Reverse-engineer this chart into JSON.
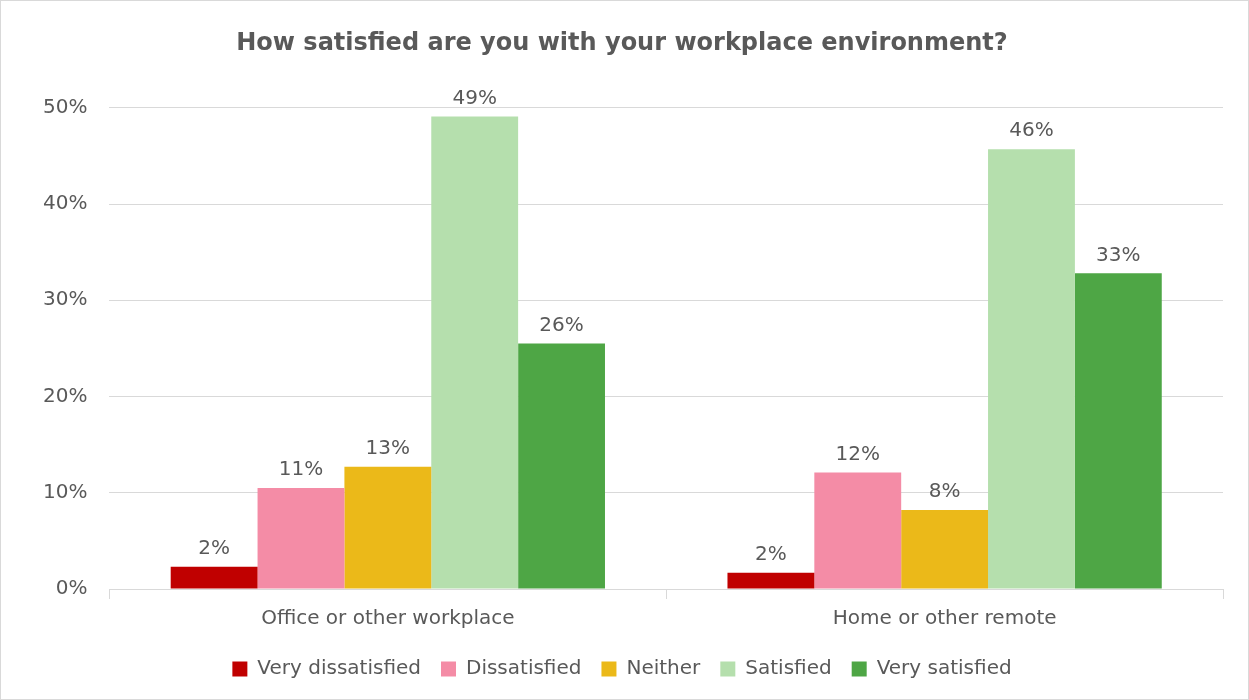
{
  "chart_data": {
    "type": "bar",
    "title": "How satisfied are you with your workplace environment?",
    "categories": [
      "Office or other workplace",
      "Home or other remote"
    ],
    "series": [
      {
        "name": "Very dissatisfied",
        "color": "#c00000",
        "values": [
          2.3,
          1.7
        ],
        "value_labels": [
          "2%",
          "2%"
        ]
      },
      {
        "name": "Dissatisfied",
        "color": "#f48ca6",
        "values": [
          10.5,
          12.1
        ],
        "value_labels": [
          "11%",
          "12%"
        ]
      },
      {
        "name": "Neither",
        "color": "#ebb919",
        "values": [
          12.7,
          8.2
        ],
        "value_labels": [
          "13%",
          "8%"
        ]
      },
      {
        "name": "Satisfied",
        "color": "#b5dfad",
        "values": [
          49.1,
          45.7
        ],
        "value_labels": [
          "49%",
          "46%"
        ]
      },
      {
        "name": "Very satisfied",
        "color": "#4ea645",
        "values": [
          25.5,
          32.8
        ],
        "value_labels": [
          "26%",
          "33%"
        ]
      }
    ],
    "ylim": [
      0,
      50
    ],
    "yticks": [
      {
        "value": 0,
        "label": "0%"
      },
      {
        "value": 10,
        "label": "10%"
      },
      {
        "value": 20,
        "label": "20%"
      },
      {
        "value": 30,
        "label": "30%"
      },
      {
        "value": 40,
        "label": "40%"
      },
      {
        "value": 50,
        "label": "50%"
      }
    ],
    "grid": "y",
    "legend": "bottom"
  }
}
